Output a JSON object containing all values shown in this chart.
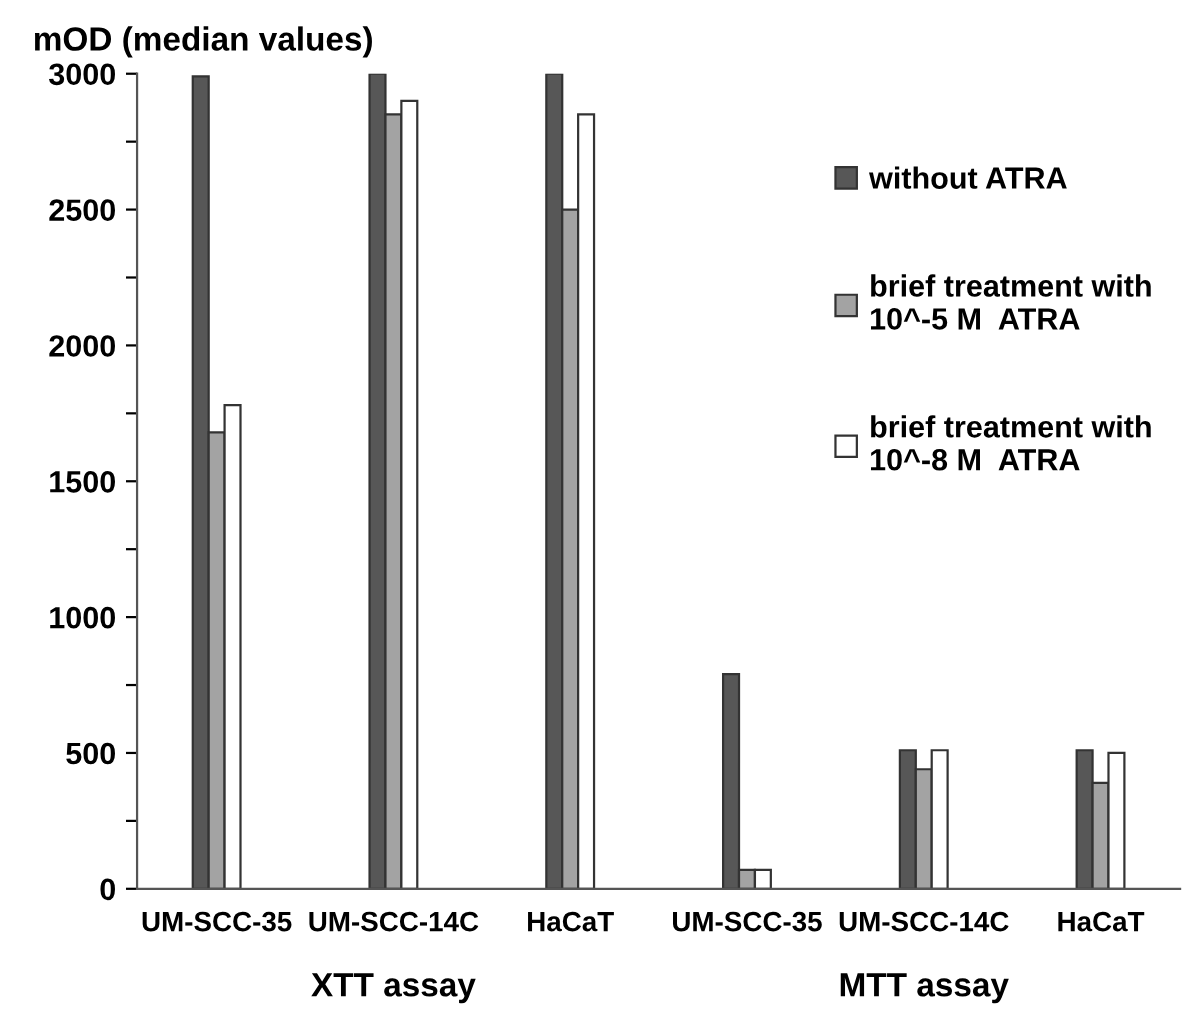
{
  "chart_data": {
    "type": "bar",
    "ylabel": "mOD (median values)",
    "categories": [
      "UM-SCC-35",
      "UM-SCC-14C",
      "HaCaT",
      "UM-SCC-35",
      "UM-SCC-14C",
      "HaCaT"
    ],
    "series": [
      {
        "name": "without ATRA",
        "color": "#575757",
        "values": [
          2990,
          3000,
          3000,
          790,
          510,
          510
        ]
      },
      {
        "name": "brief treatment with\n10^-5 M  ATRA",
        "color": "#a3a3a3",
        "values": [
          1680,
          2850,
          2500,
          70,
          440,
          390
        ]
      },
      {
        "name": "brief treatment with\n10^-8 M  ATRA",
        "color": "#ffffff",
        "values": [
          1780,
          2900,
          2850,
          70,
          510,
          500
        ]
      }
    ],
    "ylim": [
      0,
      3000
    ],
    "yticks": [
      0,
      {
        "value": 250,
        "label": null
      },
      500,
      {
        "value": 750,
        "label": null
      },
      1000,
      {
        "value": 1250,
        "label": null
      },
      1500,
      {
        "value": 1750,
        "label": null
      },
      2000,
      {
        "value": 2250,
        "label": null
      },
      2500,
      {
        "value": 2750,
        "label": null
      },
      3000
    ],
    "annotations": [
      "XTT assay",
      "MTT assay"
    ],
    "legend": "top right",
    "grid": false
  }
}
